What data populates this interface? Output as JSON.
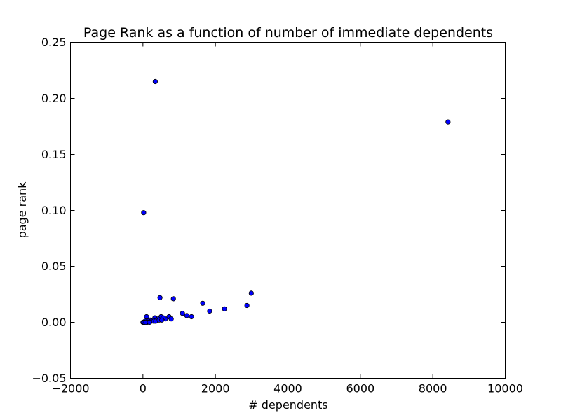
{
  "chart_data": {
    "type": "scatter",
    "title": "Page Rank as a function of number of immediate dependents",
    "xlabel": "# dependents",
    "ylabel": "page rank",
    "xlim": [
      -2000,
      10000
    ],
    "ylim": [
      -0.05,
      0.25
    ],
    "xticks": [
      -2000,
      0,
      2000,
      4000,
      6000,
      8000,
      10000
    ],
    "xtick_labels": [
      "−2000",
      "0",
      "2000",
      "4000",
      "6000",
      "8000",
      "10000"
    ],
    "yticks": [
      -0.05,
      0.0,
      0.05,
      0.1,
      0.15,
      0.2,
      0.25
    ],
    "ytick_labels": [
      "−0.05",
      "0.00",
      "0.05",
      "0.10",
      "0.15",
      "0.20",
      "0.25"
    ],
    "grid": false,
    "legend": null,
    "marker_color": "#0000ff",
    "marker_edge_color": "#000000",
    "points": [
      {
        "x": 340,
        "y": 0.215
      },
      {
        "x": 8420,
        "y": 0.179
      },
      {
        "x": 20,
        "y": 0.098
      },
      {
        "x": 2990,
        "y": 0.026
      },
      {
        "x": 470,
        "y": 0.022
      },
      {
        "x": 840,
        "y": 0.021
      },
      {
        "x": 1650,
        "y": 0.017
      },
      {
        "x": 2870,
        "y": 0.015
      },
      {
        "x": 2250,
        "y": 0.012
      },
      {
        "x": 1840,
        "y": 0.01
      },
      {
        "x": 1090,
        "y": 0.008
      },
      {
        "x": 1210,
        "y": 0.006
      },
      {
        "x": 1340,
        "y": 0.005
      },
      {
        "x": 100,
        "y": 0.005
      },
      {
        "x": 330,
        "y": 0.004
      },
      {
        "x": 500,
        "y": 0.005
      },
      {
        "x": 720,
        "y": 0.005
      },
      {
        "x": 780,
        "y": 0.003
      },
      {
        "x": 620,
        "y": 0.003
      },
      {
        "x": 560,
        "y": 0.004
      },
      {
        "x": 420,
        "y": 0.003
      },
      {
        "x": 370,
        "y": 0.002
      },
      {
        "x": 270,
        "y": 0.002
      },
      {
        "x": 200,
        "y": 0.002
      },
      {
        "x": 150,
        "y": 0.001
      },
      {
        "x": 230,
        "y": 0.001
      },
      {
        "x": 300,
        "y": 0.001
      },
      {
        "x": 120,
        "y": 0.0
      },
      {
        "x": 60,
        "y": 0.001
      },
      {
        "x": 30,
        "y": 0.0
      },
      {
        "x": 0,
        "y": 0.0
      },
      {
        "x": 10,
        "y": 0.0
      },
      {
        "x": 40,
        "y": 0.0
      },
      {
        "x": 80,
        "y": 0.0
      },
      {
        "x": 180,
        "y": 0.0
      },
      {
        "x": 350,
        "y": 0.001
      },
      {
        "x": 450,
        "y": 0.002
      },
      {
        "x": 520,
        "y": 0.002
      }
    ]
  }
}
